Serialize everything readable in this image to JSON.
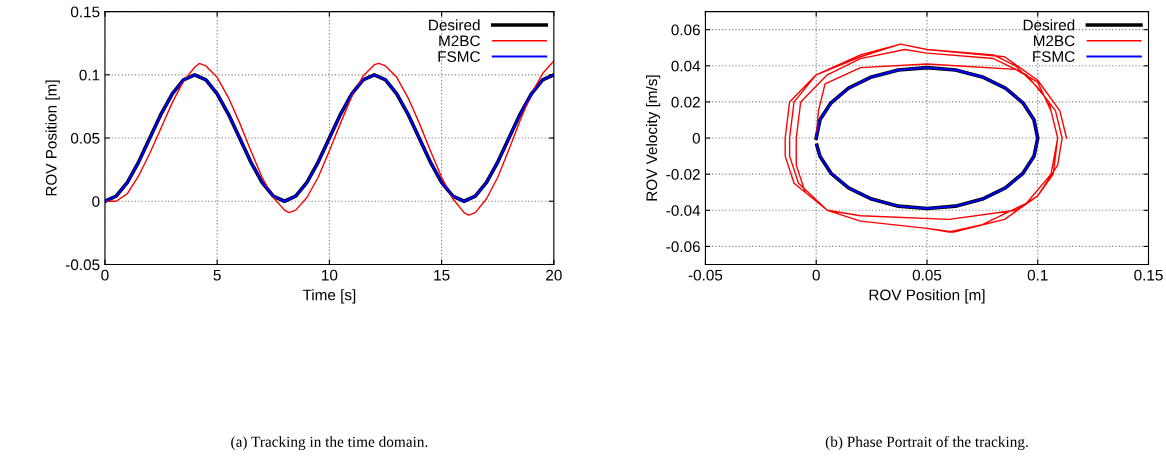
{
  "chart_data": [
    {
      "type": "line",
      "xlabel": "Time [s]",
      "ylabel": "ROV Position [m]",
      "xlim": [
        0,
        20
      ],
      "xticks": [
        0,
        5,
        10,
        15,
        20
      ],
      "ylim": [
        -0.05,
        0.15
      ],
      "yticks": [
        -0.05,
        0,
        0.05,
        0.1,
        0.15
      ],
      "grid": true,
      "legend": "top right",
      "annotations": [
        "(a) Tracking in the time domain."
      ],
      "series": [
        {
          "name": "Desired",
          "color": "#000000",
          "x": [
            0,
            0.5,
            1,
            1.5,
            2,
            2.5,
            3,
            3.5,
            4,
            4.5,
            5,
            5.5,
            6,
            6.5,
            7,
            7.5,
            8,
            8.5,
            9,
            9.5,
            10,
            10.5,
            11,
            11.5,
            12,
            12.5,
            13,
            13.5,
            14,
            14.5,
            15,
            15.5,
            16,
            16.5,
            17,
            17.5,
            18,
            18.5,
            19,
            19.5,
            20
          ],
          "values": [
            0,
            0.004,
            0.015,
            0.031,
            0.05,
            0.069,
            0.085,
            0.096,
            0.1,
            0.096,
            0.085,
            0.069,
            0.05,
            0.031,
            0.015,
            0.004,
            0,
            0.004,
            0.015,
            0.031,
            0.05,
            0.069,
            0.085,
            0.096,
            0.1,
            0.096,
            0.085,
            0.069,
            0.05,
            0.031,
            0.015,
            0.004,
            0,
            0.004,
            0.015,
            0.031,
            0.05,
            0.069,
            0.085,
            0.096,
            0.1
          ]
        },
        {
          "name": "M2BC",
          "color": "#ff0000",
          "x": [
            0,
            0.5,
            1,
            1.5,
            2,
            2.5,
            3,
            3.5,
            4,
            4.2,
            4.5,
            5,
            5.5,
            6,
            6.5,
            7,
            7.5,
            8,
            8.2,
            8.5,
            9,
            9.5,
            10,
            10.5,
            11,
            11.5,
            12,
            12.2,
            12.5,
            13,
            13.5,
            14,
            14.5,
            15,
            15.5,
            16,
            16.2,
            16.5,
            17,
            17.5,
            18,
            18.5,
            19,
            19.5,
            20
          ],
          "values": [
            0,
            0,
            0.006,
            0.02,
            0.038,
            0.058,
            0.078,
            0.095,
            0.106,
            0.109,
            0.107,
            0.098,
            0.082,
            0.062,
            0.04,
            0.019,
            0.003,
            -0.007,
            -0.009,
            -0.007,
            0.003,
            0.019,
            0.04,
            0.062,
            0.083,
            0.099,
            0.108,
            0.109,
            0.107,
            0.098,
            0.082,
            0.062,
            0.04,
            0.019,
            0.002,
            -0.009,
            -0.011,
            -0.009,
            0.002,
            0.019,
            0.041,
            0.064,
            0.085,
            0.101,
            0.111
          ]
        },
        {
          "name": "FSMC",
          "color": "#0000ff",
          "x": [
            0,
            0.5,
            1,
            1.5,
            2,
            2.5,
            3,
            3.5,
            4,
            4.5,
            5,
            5.5,
            6,
            6.5,
            7,
            7.5,
            8,
            8.5,
            9,
            9.5,
            10,
            10.5,
            11,
            11.5,
            12,
            12.5,
            13,
            13.5,
            14,
            14.5,
            15,
            15.5,
            16,
            16.5,
            17,
            17.5,
            18,
            18.5,
            19,
            19.5,
            20
          ],
          "values": [
            0,
            0.004,
            0.015,
            0.031,
            0.05,
            0.069,
            0.085,
            0.096,
            0.1,
            0.096,
            0.085,
            0.069,
            0.05,
            0.031,
            0.015,
            0.004,
            0,
            0.004,
            0.015,
            0.031,
            0.05,
            0.069,
            0.085,
            0.096,
            0.1,
            0.096,
            0.085,
            0.069,
            0.05,
            0.031,
            0.015,
            0.004,
            0,
            0.004,
            0.015,
            0.031,
            0.05,
            0.069,
            0.085,
            0.096,
            0.1
          ]
        }
      ]
    },
    {
      "type": "line",
      "xlabel": "ROV Position [m]",
      "ylabel": "ROV Velocity [m/s]",
      "xlim": [
        -0.05,
        0.15
      ],
      "xticks": [
        -0.05,
        0,
        0.05,
        0.1,
        0.15
      ],
      "ylim": [
        -0.07,
        0.07
      ],
      "yticks": [
        -0.06,
        -0.04,
        -0.02,
        0,
        0.02,
        0.04,
        0.06
      ],
      "grid": true,
      "legend": "top right",
      "annotations": [
        "(b) Phase Portrait of the tracking."
      ],
      "series": [
        {
          "name": "Desired",
          "color": "#000000",
          "x": [
            0,
            0.0017,
            0.0067,
            0.0146,
            0.025,
            0.0371,
            0.05,
            0.0629,
            0.075,
            0.0854,
            0.0933,
            0.0983,
            0.1,
            0.0983,
            0.0933,
            0.0854,
            0.075,
            0.0629,
            0.05,
            0.0371,
            0.025,
            0.0146,
            0.0067,
            0.0017,
            0.0003
          ],
          "values": [
            0,
            0.0101,
            0.0195,
            0.0276,
            0.0338,
            0.0377,
            0.039,
            0.0377,
            0.0338,
            0.0276,
            0.0195,
            0.0101,
            0,
            -0.0101,
            -0.0195,
            -0.0276,
            -0.0338,
            -0.0377,
            -0.039,
            -0.0377,
            -0.0338,
            -0.0276,
            -0.0195,
            -0.0101,
            -0.004
          ]
        },
        {
          "name": "M2BC",
          "color": "#ff0000",
          "x": [
            0,
            0.001,
            0.004,
            0.02,
            0.05,
            0.09,
            0.1,
            0.106,
            0.109,
            0.107,
            0.1,
            0.09,
            0.06,
            0.02,
            0.005,
            -0.005,
            -0.009,
            -0.009,
            -0.007,
            0.005,
            0.02,
            0.04,
            0.05,
            0.08,
            0.095,
            0.105,
            0.109,
            0.106,
            0.095,
            0.075,
            0.06,
            0.05,
            0.02,
            0.005,
            -0.008,
            -0.012,
            -0.012,
            -0.01,
            0,
            0.02,
            0.038,
            0.05,
            0.08,
            0.09,
            0.1,
            0.108,
            0.111,
            0.109,
            0.1,
            0.085,
            0.062,
            0.05,
            0.02,
            0.005,
            -0.01,
            -0.014,
            -0.014,
            -0.012,
            0,
            0.02,
            0.038,
            0.05,
            0.085,
            0.1,
            0.11,
            0.113
          ],
          "values": [
            0,
            0.015,
            0.03,
            0.039,
            0.041,
            0.038,
            0.031,
            0.015,
            0,
            -0.02,
            -0.032,
            -0.04,
            -0.045,
            -0.043,
            -0.04,
            -0.03,
            -0.015,
            0,
            0.02,
            0.035,
            0.044,
            0.049,
            0.047,
            0.044,
            0.035,
            0.02,
            0,
            -0.02,
            -0.036,
            -0.048,
            -0.052,
            -0.05,
            -0.046,
            -0.04,
            -0.025,
            -0.01,
            0,
            0.02,
            0.035,
            0.045,
            0.052,
            0.049,
            0.046,
            0.04,
            0.028,
            0.015,
            0,
            -0.015,
            -0.032,
            -0.045,
            -0.052,
            -0.05,
            -0.046,
            -0.04,
            -0.025,
            -0.01,
            0,
            0.02,
            0.035,
            0.046,
            0.052,
            0.049,
            0.045,
            0.032,
            0.015,
            0
          ]
        },
        {
          "name": "FSMC",
          "color": "#0000ff",
          "x": [
            0,
            0.0017,
            0.0067,
            0.0146,
            0.025,
            0.0371,
            0.05,
            0.0629,
            0.075,
            0.0854,
            0.0933,
            0.0983,
            0.1,
            0.0983,
            0.0933,
            0.0854,
            0.075,
            0.0629,
            0.05,
            0.0371,
            0.025,
            0.0146,
            0.0067,
            0.0017,
            0.0003
          ],
          "values": [
            0,
            0.0101,
            0.0195,
            0.0276,
            0.0338,
            0.0377,
            0.039,
            0.0377,
            0.0338,
            0.0276,
            0.0195,
            0.0101,
            0,
            -0.0101,
            -0.0195,
            -0.0276,
            -0.0338,
            -0.0377,
            -0.039,
            -0.0377,
            -0.0338,
            -0.0276,
            -0.0195,
            -0.0101,
            -0.004
          ]
        }
      ]
    }
  ]
}
